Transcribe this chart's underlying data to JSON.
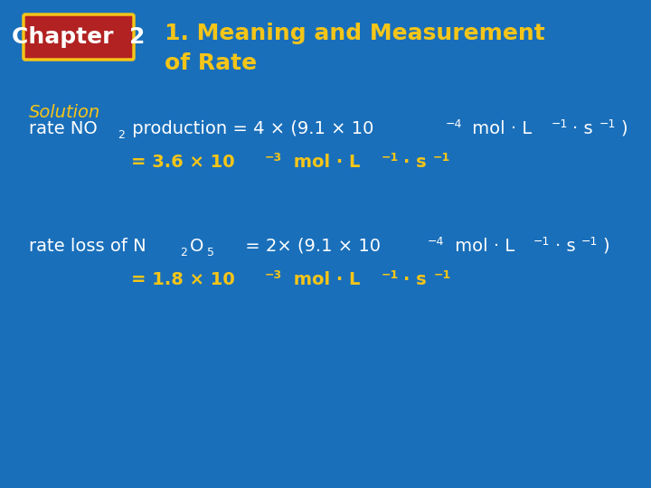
{
  "bg_color": "#1a6fba",
  "title_text": "1. Meaning and Measurement\nof Rate",
  "title_color": "#f5c518",
  "chapter_label": "Chapter  2",
  "chapter_bg": "#b22222",
  "chapter_text_color": "#ffffff",
  "solution_label": "Solution",
  "solution_color": "#f5c518",
  "white_color": "#ffffff",
  "yellow_color": "#f5c518"
}
